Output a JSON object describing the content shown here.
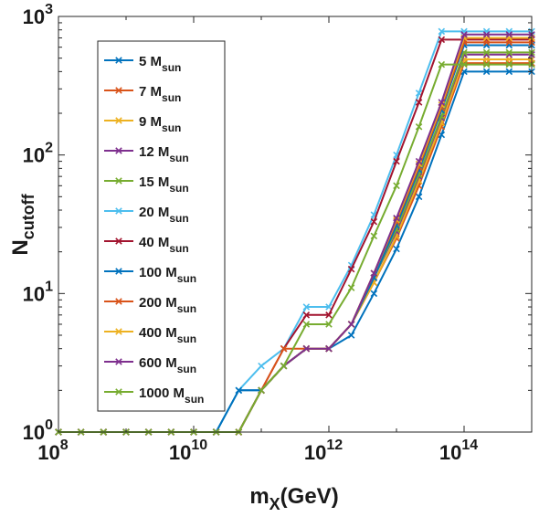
{
  "chart_data": {
    "type": "line",
    "xlabel": {
      "main": "m",
      "sub": "X",
      "tail": "(GeV)"
    },
    "ylabel": {
      "main": "N",
      "sub": "cutoff"
    },
    "xscale": "log",
    "yscale": "log",
    "xlim": [
      100000000.0,
      1000000000000000.0
    ],
    "ylim": [
      1,
      1000
    ],
    "xticks": [
      {
        "value": 100000000.0,
        "base": "10",
        "exp": "8"
      },
      {
        "value": 10000000000.0,
        "base": "10",
        "exp": "10"
      },
      {
        "value": 1000000000000.0,
        "base": "10",
        "exp": "12"
      },
      {
        "value": 100000000000000.0,
        "base": "10",
        "exp": "14"
      }
    ],
    "yticks": [
      {
        "value": 1,
        "base": "10",
        "exp": "0"
      },
      {
        "value": 10,
        "base": "10",
        "exp": "1"
      },
      {
        "value": 100,
        "base": "10",
        "exp": "2"
      },
      {
        "value": 1000,
        "base": "10",
        "exp": "3"
      }
    ],
    "grid": false,
    "legend_position": "top-left",
    "marker": "x",
    "x": [
      100000000.0,
      215000000.0,
      464000000.0,
      1000000000.0,
      2150000000.0,
      4640000000.0,
      10000000000.0,
      21500000000.0,
      46400000000.0,
      100000000000.0,
      215000000000.0,
      464000000000.0,
      1000000000000.0,
      2150000000000.0,
      4640000000000.0,
      10000000000000.0,
      21500000000000.0,
      46400000000000.0,
      100000000000000.0,
      215000000000000.0,
      464000000000000.0,
      1000000000000000.0
    ],
    "series": [
      {
        "name": "5 M",
        "sub": "sun",
        "color": "#0072bd",
        "values": [
          1,
          1,
          1,
          1,
          1,
          1,
          1,
          1,
          2,
          2,
          3,
          4,
          4,
          5,
          10,
          21,
          50,
          140,
          400,
          400,
          400,
          400
        ]
      },
      {
        "name": "7 M",
        "sub": "sun",
        "color": "#d95319",
        "values": [
          1,
          1,
          1,
          1,
          1,
          1,
          1,
          1,
          1,
          2,
          3,
          4,
          4,
          6,
          12,
          25,
          60,
          160,
          460,
          460,
          460,
          460
        ]
      },
      {
        "name": "9 M",
        "sub": "sun",
        "color": "#edb120",
        "values": [
          1,
          1,
          1,
          1,
          1,
          1,
          1,
          1,
          1,
          2,
          3,
          4,
          4,
          6,
          12,
          26,
          65,
          170,
          490,
          490,
          490,
          490
        ]
      },
      {
        "name": "12 M",
        "sub": "sun",
        "color": "#7e2f8e",
        "values": [
          1,
          1,
          1,
          1,
          1,
          1,
          1,
          1,
          1,
          2,
          3,
          4,
          4,
          6,
          13,
          28,
          70,
          185,
          530,
          530,
          530,
          530
        ]
      },
      {
        "name": "15 M",
        "sub": "sun",
        "color": "#77ac30",
        "values": [
          1,
          1,
          1,
          1,
          1,
          1,
          1,
          1,
          1,
          2,
          3,
          4,
          4,
          6,
          13,
          29,
          72,
          190,
          550,
          550,
          550,
          550
        ]
      },
      {
        "name": "20 M",
        "sub": "sun",
        "color": "#4dbeee",
        "values": [
          1,
          1,
          1,
          1,
          1,
          1,
          1,
          1,
          2,
          3,
          4,
          8,
          8,
          16,
          37,
          100,
          280,
          780,
          780,
          780,
          780,
          780
        ]
      },
      {
        "name": "40 M",
        "sub": "sun",
        "color": "#a2142f",
        "values": [
          1,
          1,
          1,
          1,
          1,
          1,
          1,
          1,
          1,
          2,
          4,
          7,
          7,
          15,
          33,
          90,
          240,
          680,
          680,
          680,
          680,
          680
        ]
      },
      {
        "name": "100 M",
        "sub": "sun",
        "color": "#0072bd",
        "values": [
          1,
          1,
          1,
          1,
          1,
          1,
          1,
          1,
          2,
          2,
          3,
          4,
          4,
          6,
          13,
          31,
          78,
          210,
          620,
          620,
          620,
          620
        ]
      },
      {
        "name": "200 M",
        "sub": "sun",
        "color": "#d95319",
        "values": [
          1,
          1,
          1,
          1,
          1,
          1,
          1,
          1,
          1,
          2,
          4,
          4,
          4,
          6,
          14,
          33,
          82,
          220,
          650,
          650,
          650,
          650
        ]
      },
      {
        "name": "400 M",
        "sub": "sun",
        "color": "#edb120",
        "values": [
          1,
          1,
          1,
          1,
          1,
          1,
          1,
          1,
          1,
          2,
          3,
          4,
          4,
          6,
          14,
          34,
          86,
          230,
          700,
          700,
          700,
          700
        ]
      },
      {
        "name": "600 M",
        "sub": "sun",
        "color": "#7e2f8e",
        "values": [
          1,
          1,
          1,
          1,
          1,
          1,
          1,
          1,
          1,
          2,
          3,
          4,
          4,
          6,
          14,
          35,
          90,
          240,
          740,
          740,
          740,
          740
        ]
      },
      {
        "name": "1000 M",
        "sub": "sun",
        "color": "#77ac30",
        "values": [
          1,
          1,
          1,
          1,
          1,
          1,
          1,
          1,
          1,
          2,
          3,
          6,
          6,
          11,
          26,
          60,
          160,
          450,
          450,
          450,
          450,
          450
        ]
      }
    ]
  }
}
